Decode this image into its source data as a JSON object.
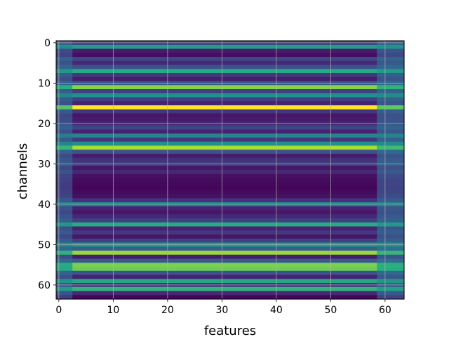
{
  "chart_data": {
    "type": "heatmap",
    "title": "",
    "xlabel": "features",
    "ylabel": "channels",
    "xlim": [
      -0.5,
      63.5
    ],
    "ylim": [
      63.5,
      -0.5
    ],
    "y_axis_inverted": true,
    "xticks": [
      0,
      10,
      20,
      30,
      40,
      50,
      60
    ],
    "yticks": [
      0,
      10,
      20,
      30,
      40,
      50,
      60
    ],
    "grid": true,
    "colormap": "viridis",
    "n_rows": 64,
    "n_cols": 64,
    "row_values": [
      0.18,
      0.55,
      0.1,
      0.05,
      0.22,
      0.14,
      0.26,
      0.62,
      0.18,
      0.1,
      0.28,
      0.82,
      0.2,
      0.5,
      0.2,
      0.12,
      1.0,
      0.18,
      0.08,
      0.1,
      0.14,
      0.22,
      0.12,
      0.45,
      0.18,
      0.5,
      0.88,
      0.25,
      0.1,
      0.16,
      0.2,
      0.08,
      0.14,
      0.06,
      0.04,
      0.03,
      0.02,
      0.04,
      0.06,
      0.16,
      0.45,
      0.12,
      0.08,
      0.14,
      0.2,
      0.62,
      0.12,
      0.18,
      0.08,
      0.2,
      0.55,
      0.3,
      0.85,
      0.1,
      0.28,
      0.8,
      0.78,
      0.25,
      0.12,
      0.6,
      0.18,
      0.66,
      0.14,
      0.02
    ],
    "edge_columns": {
      "left_end": 3,
      "right_start": 59
    }
  }
}
